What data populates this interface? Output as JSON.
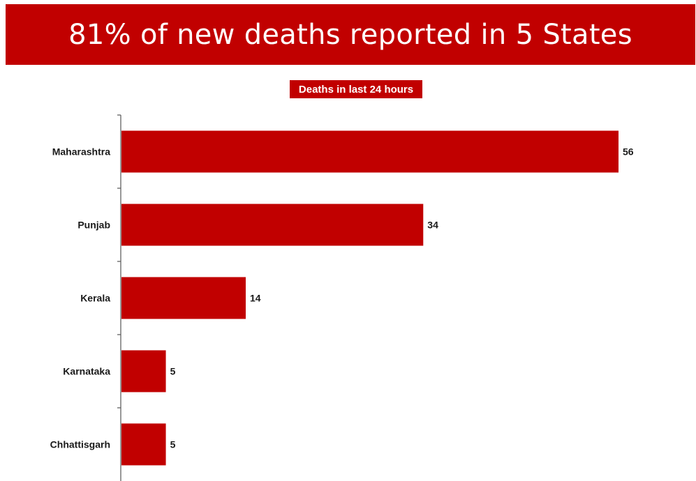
{
  "chart_data": {
    "type": "bar",
    "orientation": "horizontal",
    "title": "81% of new deaths reported in 5 States",
    "subtitle": "Deaths in last 24 hours",
    "categories": [
      "Maharashtra",
      "Punjab",
      "Kerala",
      "Karnataka",
      "Chhattisgarh"
    ],
    "values": [
      56,
      34,
      14,
      5,
      5
    ],
    "data_labels": [
      "56",
      "34",
      "14",
      "5",
      "5"
    ],
    "bar_color": "#c10000",
    "xlim": [
      0,
      56
    ],
    "grid": false,
    "legend": "none"
  }
}
